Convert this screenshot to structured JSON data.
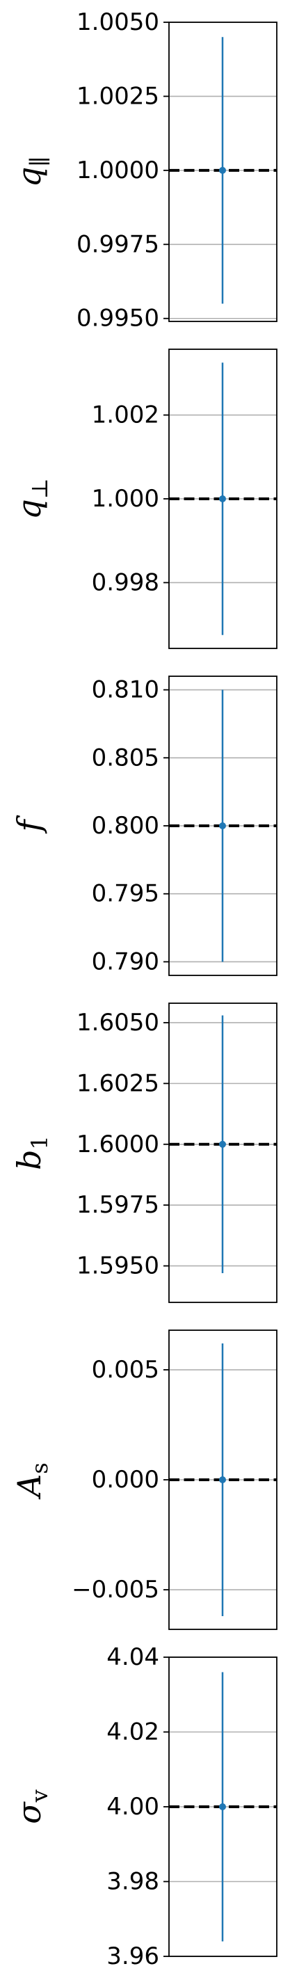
{
  "chart_data": [
    {
      "type": "errorbar",
      "parameter": "q_par",
      "ylabel_symbol": "q",
      "ylabel_subscript": "∥",
      "value": 1.0,
      "error": 0.0045,
      "truth": 1.0,
      "ylim": [
        0.9949,
        1.005
      ],
      "ticks": [
        0.995,
        0.9975,
        1.0,
        1.0025,
        1.005
      ],
      "tick_labels": [
        "0.9950",
        "0.9975",
        "1.0000",
        "1.0025",
        "1.0050"
      ],
      "grid": true
    },
    {
      "type": "errorbar",
      "parameter": "q_perp",
      "ylabel_symbol": "q",
      "ylabel_subscript": "⊥",
      "value": 1.0,
      "error": 0.00325,
      "truth": 1.0,
      "ylim": [
        0.99643,
        1.00357
      ],
      "ticks": [
        0.998,
        1.0,
        1.002
      ],
      "tick_labels": [
        "0.998",
        "1.000",
        "1.002"
      ],
      "grid": true
    },
    {
      "type": "errorbar",
      "parameter": "f",
      "ylabel_symbol": "f",
      "ylabel_subscript": "",
      "value": 0.8,
      "error": 0.01,
      "truth": 0.8,
      "ylim": [
        0.789,
        0.811
      ],
      "ticks": [
        0.79,
        0.795,
        0.8,
        0.805,
        0.81
      ],
      "tick_labels": [
        "0.790",
        "0.795",
        "0.800",
        "0.805",
        "0.810"
      ],
      "grid": true
    },
    {
      "type": "errorbar",
      "parameter": "b1",
      "ylabel_symbol": "b",
      "ylabel_subscript": "1",
      "value": 1.6,
      "error": 0.0053,
      "truth": 1.6,
      "ylim": [
        1.5935,
        1.6058
      ],
      "ticks": [
        1.595,
        1.5975,
        1.6,
        1.6025,
        1.605
      ],
      "tick_labels": [
        "1.5950",
        "1.5975",
        "1.6000",
        "1.6025",
        "1.6050"
      ],
      "grid": true
    },
    {
      "type": "errorbar",
      "parameter": "A_s",
      "ylabel_symbol": "A",
      "ylabel_subscript": "s",
      "value": 0.0,
      "error": 0.0062,
      "truth": 0.0,
      "ylim": [
        -0.0068,
        0.0068
      ],
      "ticks": [
        -0.005,
        0.0,
        0.005
      ],
      "tick_labels": [
        "−0.005",
        "0.000",
        "0.005"
      ],
      "grid": true
    },
    {
      "type": "errorbar",
      "parameter": "sigma_v",
      "ylabel_symbol": "σ",
      "ylabel_subscript": "v",
      "value": 4.0,
      "error": 0.036,
      "truth": 4.0,
      "ylim": [
        3.96,
        4.04
      ],
      "ticks": [
        3.96,
        3.98,
        4.0,
        4.02,
        4.04
      ],
      "tick_labels": [
        "3.96",
        "3.98",
        "4.00",
        "4.02",
        "4.04"
      ],
      "grid": true
    }
  ],
  "colors": {
    "errorbar": "#1f77b4",
    "marker": "#1f77b4",
    "truth_line": "#000000",
    "grid": "#b0b0b0",
    "axes": "#000000"
  }
}
